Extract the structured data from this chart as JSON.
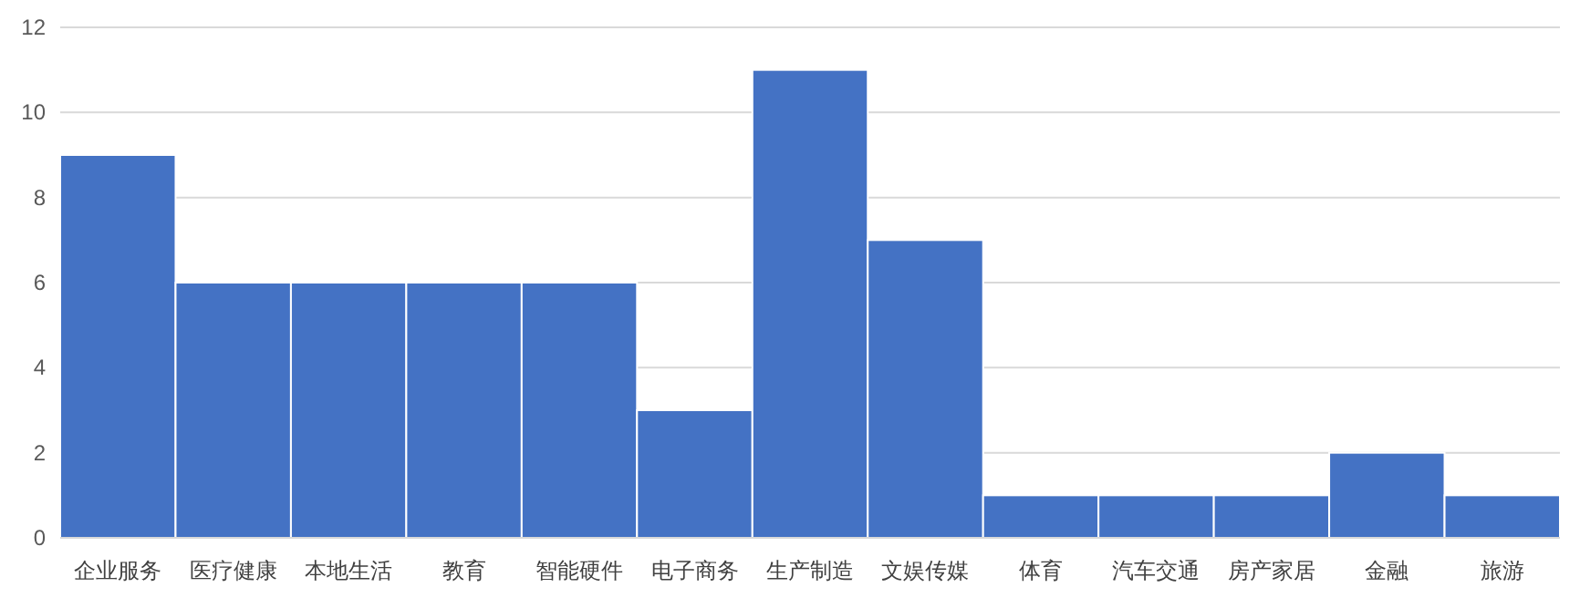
{
  "chart_data": {
    "type": "bar",
    "categories": [
      "企业服务",
      "医疗健康",
      "本地生活",
      "教育",
      "智能硬件",
      "电子商务",
      "生产制造",
      "文娱传媒",
      "体育",
      "汽车交通",
      "房产家居",
      "金融",
      "旅游"
    ],
    "values": [
      9,
      6,
      6,
      6,
      6,
      3,
      11,
      7,
      1,
      1,
      1,
      2,
      1
    ],
    "color": "#4472c4",
    "ylim": [
      0,
      12
    ],
    "yticks": [
      0,
      2,
      4,
      6,
      8,
      10,
      12
    ],
    "grid": "y"
  }
}
